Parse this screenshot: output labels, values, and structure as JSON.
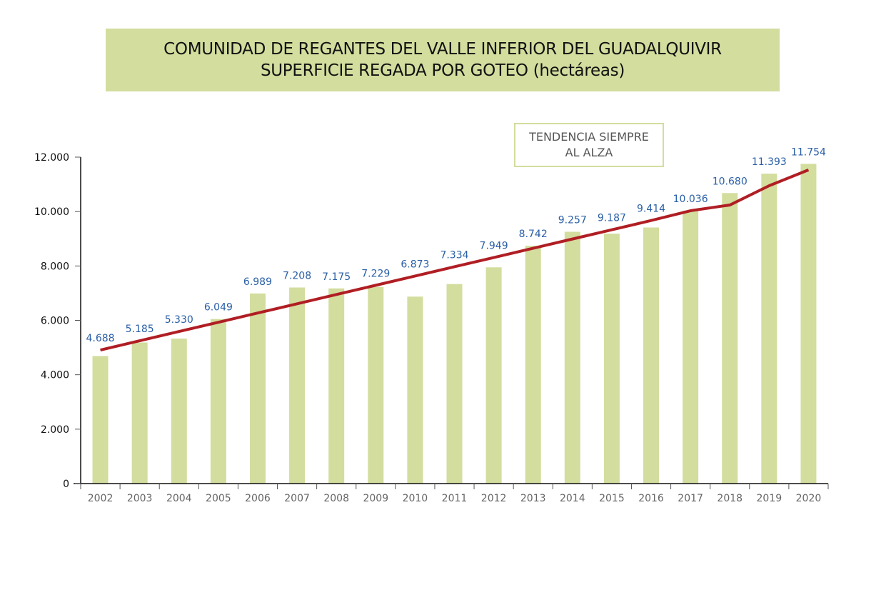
{
  "chart_data": {
    "type": "bar",
    "title": "COMUNIDAD DE REGANTES DEL VALLE INFERIOR DEL GUADALQUIVIR",
    "subtitle": "SUPERFICIE REGADA POR GOTEO (hectáreas)",
    "annotation": [
      "TENDENCIA SIEMPRE",
      "AL ALZA"
    ],
    "xlabel": "",
    "ylabel": "",
    "ylim": [
      0,
      12000
    ],
    "yticks": [
      0,
      2000,
      4000,
      6000,
      8000,
      10000,
      12000
    ],
    "ytick_labels": [
      "0",
      "2.000",
      "4.000",
      "6.000",
      "8.000",
      "10.000",
      "12.000"
    ],
    "grid": false,
    "categories": [
      "2002",
      "2003",
      "2004",
      "2005",
      "2006",
      "2007",
      "2008",
      "2009",
      "2010",
      "2011",
      "2012",
      "2013",
      "2014",
      "2015",
      "2016",
      "2017",
      "2018",
      "2019",
      "2020"
    ],
    "values": [
      4688,
      5185,
      5330,
      6049,
      6989,
      7208,
      7175,
      7229,
      6873,
      7334,
      7949,
      8742,
      9257,
      9187,
      9414,
      10036,
      10680,
      11393,
      11754
    ],
    "value_labels": [
      "4.688",
      "5.185",
      "5.330",
      "6.049",
      "6.989",
      "7.208",
      "7.175",
      "7.229",
      "6.873",
      "7.334",
      "7.949",
      "8.742",
      "9.257",
      "9.187",
      "9.414",
      "10.036",
      "10.680",
      "11.393",
      "11.754"
    ],
    "trend": [
      4910,
      5250,
      5590,
      5930,
      6270,
      6610,
      6950,
      7290,
      7630,
      7970,
      8310,
      8650,
      8990,
      9330,
      9670,
      10030,
      10240,
      10950,
      11530
    ],
    "colors": {
      "bar": "#d3dd9e",
      "trend": "#b01e23",
      "label": "#2a5fa6"
    }
  }
}
